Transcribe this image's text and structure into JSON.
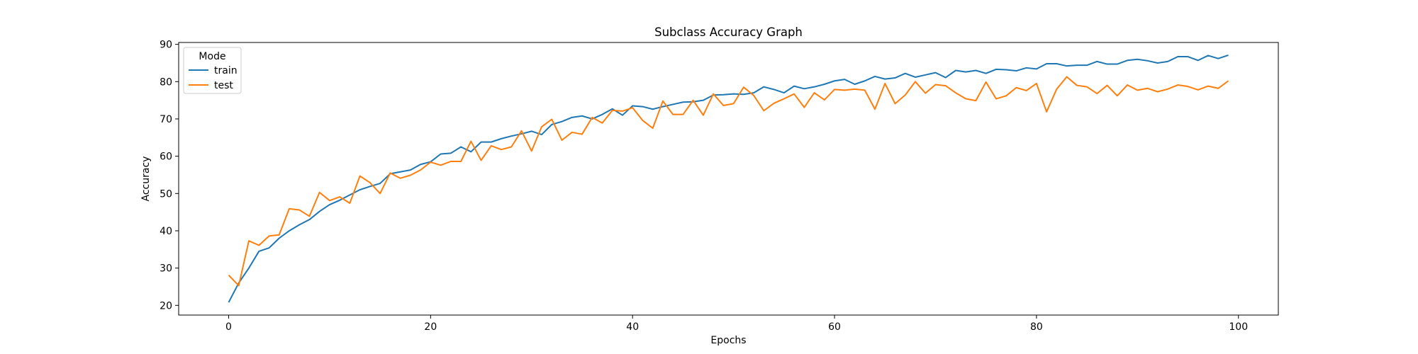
{
  "chart_data": {
    "type": "line",
    "title": "Subclass Accuracy Graph",
    "xlabel": "Epochs",
    "ylabel": "Accuracy",
    "xlim": [
      -4.95,
      103.95
    ],
    "ylim": [
      17.4,
      90.5
    ],
    "xticks": [
      0,
      20,
      40,
      60,
      80,
      100
    ],
    "yticks": [
      20,
      30,
      40,
      50,
      60,
      70,
      80,
      90
    ],
    "grid": false,
    "legend": {
      "title": "Mode",
      "placement": "top-left"
    },
    "x": [
      0,
      1,
      2,
      3,
      4,
      5,
      6,
      7,
      8,
      9,
      10,
      11,
      12,
      13,
      14,
      15,
      16,
      17,
      18,
      19,
      20,
      21,
      22,
      23,
      24,
      25,
      26,
      27,
      28,
      29,
      30,
      31,
      32,
      33,
      34,
      35,
      36,
      37,
      38,
      39,
      40,
      41,
      42,
      43,
      44,
      45,
      46,
      47,
      48,
      49,
      50,
      51,
      52,
      53,
      54,
      55,
      56,
      57,
      58,
      59,
      60,
      61,
      62,
      63,
      64,
      65,
      66,
      67,
      68,
      69,
      70,
      71,
      72,
      73,
      74,
      75,
      76,
      77,
      78,
      79,
      80,
      81,
      82,
      83,
      84,
      85,
      86,
      87,
      88,
      89,
      90,
      91,
      92,
      93,
      94,
      95,
      96,
      97,
      98,
      99
    ],
    "series": [
      {
        "name": "train",
        "color": "#1f77b4",
        "values": [
          20.8,
          26.0,
          30.0,
          34.5,
          35.4,
          38.0,
          40.0,
          41.6,
          43.0,
          45.2,
          47.0,
          48.2,
          49.6,
          51.0,
          51.9,
          52.7,
          55.3,
          55.8,
          56.3,
          57.8,
          58.5,
          60.6,
          60.8,
          62.5,
          61.2,
          63.8,
          63.8,
          64.7,
          65.4,
          66.0,
          66.7,
          65.8,
          68.5,
          69.3,
          70.4,
          70.8,
          70.0,
          71.2,
          72.7,
          71.0,
          73.5,
          73.3,
          72.6,
          73.3,
          73.9,
          74.5,
          74.6,
          75.0,
          76.4,
          76.5,
          76.7,
          76.6,
          77.0,
          78.6,
          77.9,
          77.0,
          78.8,
          78.1,
          78.6,
          79.3,
          80.2,
          80.6,
          79.3,
          80.2,
          81.4,
          80.7,
          81.0,
          82.2,
          81.2,
          81.8,
          82.4,
          81.1,
          83.0,
          82.6,
          83.0,
          82.2,
          83.3,
          83.2,
          82.9,
          83.7,
          83.4,
          84.8,
          84.8,
          84.2,
          84.4,
          84.4,
          85.4,
          84.7,
          84.7,
          85.7,
          86.0,
          85.6,
          85.0,
          85.4,
          86.7,
          86.7,
          85.7,
          87.0,
          86.2,
          87.1
        ]
      },
      {
        "name": "test",
        "color": "#ff7f0e",
        "values": [
          28.1,
          25.3,
          37.3,
          36.1,
          38.6,
          38.9,
          45.9,
          45.6,
          43.9,
          50.3,
          48.1,
          49.1,
          47.4,
          54.7,
          52.9,
          50.0,
          55.5,
          54.1,
          54.9,
          56.3,
          58.4,
          57.6,
          58.6,
          58.6,
          64.0,
          58.9,
          62.8,
          61.8,
          62.5,
          66.8,
          61.4,
          67.9,
          69.9,
          64.3,
          66.4,
          65.9,
          70.4,
          68.9,
          72.3,
          72.1,
          73.0,
          69.6,
          67.5,
          74.8,
          71.2,
          71.2,
          75.0,
          71.0,
          76.7,
          73.6,
          74.1,
          78.5,
          76.3,
          72.2,
          74.2,
          75.4,
          76.7,
          73.1,
          77.0,
          75.1,
          77.9,
          77.7,
          78.0,
          77.7,
          72.6,
          79.5,
          74.1,
          76.4,
          80.0,
          76.9,
          79.2,
          78.9,
          77.0,
          75.4,
          74.9,
          79.9,
          75.4,
          76.2,
          78.4,
          77.6,
          79.5,
          71.9,
          78.0,
          81.3,
          79.0,
          78.6,
          76.8,
          79.0,
          76.2,
          79.1,
          77.7,
          78.2,
          77.3,
          78.0,
          79.1,
          78.7,
          77.8,
          78.8,
          78.2,
          80.2
        ]
      }
    ]
  }
}
